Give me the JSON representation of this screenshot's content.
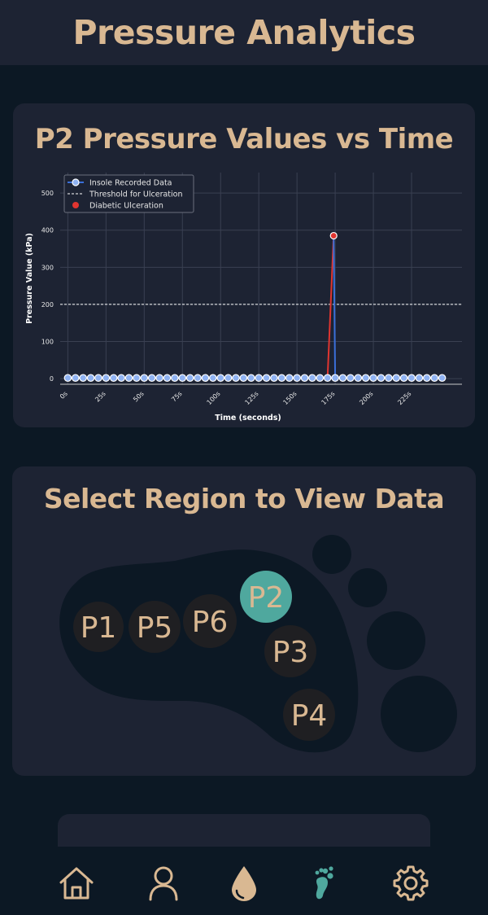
{
  "header": {
    "title": "Pressure Analytics"
  },
  "chart_card": {
    "title": "P2 Pressure Values vs Time"
  },
  "chart_data": {
    "type": "line",
    "title": "",
    "xlabel": "Time (seconds)",
    "ylabel": "Pressure Value (kPa)",
    "xlim": [
      -5,
      258
    ],
    "ylim": [
      -15,
      555
    ],
    "x_ticks": [
      0,
      25,
      50,
      75,
      100,
      125,
      150,
      175,
      200,
      225
    ],
    "x_tick_labels": [
      "0s",
      "25s",
      "50s",
      "75s",
      "100s",
      "125s",
      "150s",
      "175s",
      "200s",
      "225s"
    ],
    "y_ticks": [
      0,
      100,
      200,
      300,
      400,
      500
    ],
    "y_tick_labels": [
      "0",
      "100",
      "200",
      "300",
      "400",
      "500"
    ],
    "threshold": 200,
    "grid": true,
    "legend_placement": "top-left",
    "legend": [
      "Insole Recorded Data",
      "Threshold for Ulceration",
      "Diabetic Ulceration"
    ],
    "series": [
      {
        "name": "Insole Recorded Data",
        "x_start": 0,
        "x_step": 5,
        "values": [
          2,
          2,
          2,
          2,
          2,
          2,
          2,
          2,
          2,
          2,
          2,
          2,
          2,
          2,
          2,
          2,
          2,
          2,
          2,
          2,
          2,
          2,
          2,
          2,
          2,
          2,
          2,
          2,
          2,
          2,
          2,
          2,
          2,
          2,
          2,
          2,
          2,
          2,
          2,
          2,
          2,
          2,
          2,
          2,
          2,
          2,
          2,
          2,
          2,
          2
        ]
      }
    ],
    "ulceration_points": [
      {
        "x": 174,
        "y": 385
      }
    ],
    "line_colors": {
      "normal": "#3a6fd8",
      "ulcer": "#e03530"
    },
    "marker_fill": "#8fb2f2"
  },
  "region_card": {
    "title": "Select Region to View Data"
  },
  "regions": [
    {
      "id": "P1",
      "label": "P1",
      "selected": false
    },
    {
      "id": "P5",
      "label": "P5",
      "selected": false
    },
    {
      "id": "P6",
      "label": "P6",
      "selected": false
    },
    {
      "id": "P2",
      "label": "P2",
      "selected": true
    },
    {
      "id": "P3",
      "label": "P3",
      "selected": false
    },
    {
      "id": "P4",
      "label": "P4",
      "selected": false
    }
  ],
  "nav": [
    {
      "name": "home-icon",
      "active": false
    },
    {
      "name": "person-icon",
      "active": false
    },
    {
      "name": "drop-icon",
      "active": false
    },
    {
      "name": "footprint-icon",
      "active": true
    },
    {
      "name": "gear-icon",
      "active": false
    }
  ],
  "colors": {
    "background": "#0c1824",
    "card": "#1d2333",
    "accent": "#d9b892",
    "selected": "#4fa89e",
    "region_fill": "#1f1f22",
    "foot": "#0c1824"
  }
}
